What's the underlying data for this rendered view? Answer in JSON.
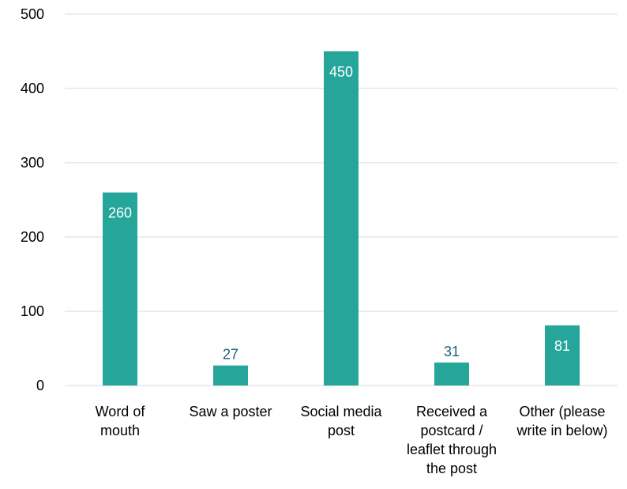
{
  "chart_data": {
    "type": "bar",
    "categories": [
      [
        "Word of",
        "mouth"
      ],
      [
        "Saw a poster"
      ],
      [
        "Social media",
        "post"
      ],
      [
        "Received a",
        "postcard /",
        "leaflet through",
        "the post"
      ],
      [
        "Other (please",
        "write in below)"
      ]
    ],
    "values": [
      260,
      27,
      450,
      31,
      81
    ],
    "ylim": [
      0,
      500
    ],
    "yticks": [
      0,
      100,
      200,
      300,
      400,
      500
    ],
    "grid": true,
    "legend": "none",
    "colors": {
      "bar": "#26a69a",
      "gridline": "#d9d9d9",
      "label_inside": "#ffffff",
      "label_outside": "#1f5f7a"
    }
  }
}
